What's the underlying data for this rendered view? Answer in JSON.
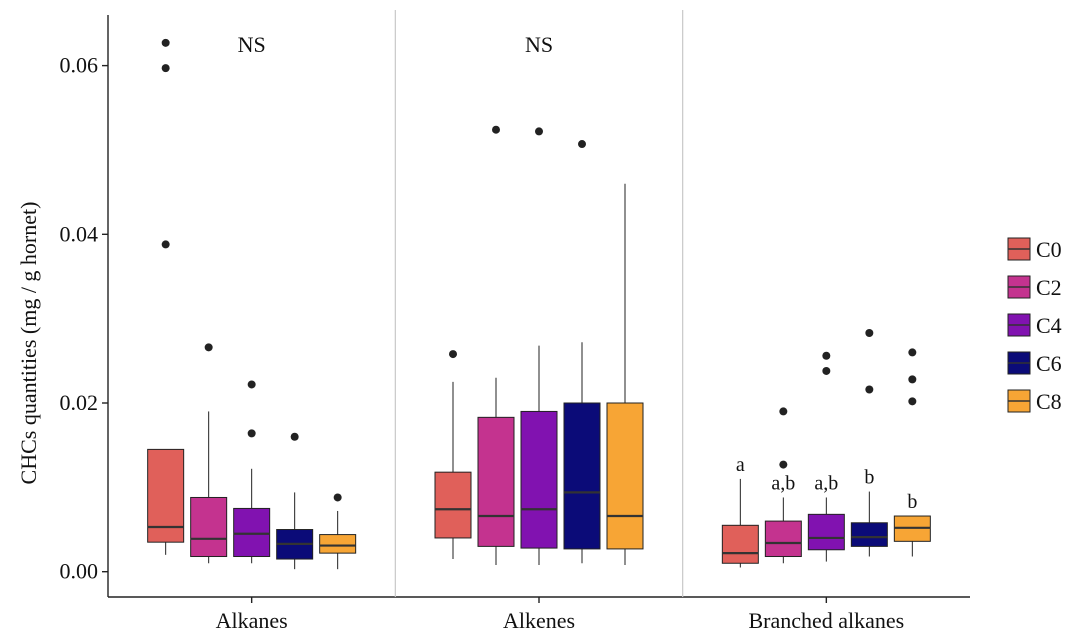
{
  "chart_data": {
    "type": "box",
    "ylabel": "CHCs quantities (mg / g hornet)",
    "xlabel": "",
    "ylim": [
      -0.003,
      0.066
    ],
    "yticks": [
      0.0,
      0.02,
      0.04,
      0.06
    ],
    "ytick_labels": [
      "0.00",
      "0.02",
      "0.04",
      "0.06"
    ],
    "grid": false,
    "legend_position": "right",
    "series": [
      {
        "name": "C0",
        "color": "#e0605a"
      },
      {
        "name": "C2",
        "color": "#c4338f"
      },
      {
        "name": "C4",
        "color": "#8112b0"
      },
      {
        "name": "C6",
        "color": "#0b0b78"
      },
      {
        "name": "C8",
        "color": "#f7a535"
      }
    ],
    "groups": [
      {
        "label": "Alkanes",
        "annotation": "NS",
        "boxes": [
          {
            "series": "C0",
            "min": 0.002,
            "q1": 0.0035,
            "median": 0.0053,
            "q3": 0.0145,
            "max": 0.0145,
            "outliers": [
              0.0627,
              0.0597,
              0.0388
            ],
            "letter": ""
          },
          {
            "series": "C2",
            "min": 0.001,
            "q1": 0.0018,
            "median": 0.0039,
            "q3": 0.0088,
            "max": 0.019,
            "outliers": [
              0.0266
            ],
            "letter": ""
          },
          {
            "series": "C4",
            "min": 0.001,
            "q1": 0.0018,
            "median": 0.0045,
            "q3": 0.0075,
            "max": 0.0122,
            "outliers": [
              0.0222,
              0.0164
            ],
            "letter": ""
          },
          {
            "series": "C6",
            "min": 0.0003,
            "q1": 0.0015,
            "median": 0.0033,
            "q3": 0.005,
            "max": 0.0094,
            "outliers": [
              0.016
            ],
            "letter": ""
          },
          {
            "series": "C8",
            "min": 0.0003,
            "q1": 0.0022,
            "median": 0.0031,
            "q3": 0.0044,
            "max": 0.0072,
            "outliers": [
              0.0088
            ],
            "letter": ""
          }
        ]
      },
      {
        "label": "Alkenes",
        "annotation": "NS",
        "boxes": [
          {
            "series": "C0",
            "min": 0.0015,
            "q1": 0.004,
            "median": 0.0074,
            "q3": 0.0118,
            "max": 0.0225,
            "outliers": [
              0.0258
            ],
            "letter": ""
          },
          {
            "series": "C2",
            "min": 0.0008,
            "q1": 0.003,
            "median": 0.0066,
            "q3": 0.0183,
            "max": 0.023,
            "outliers": [
              0.0524
            ],
            "letter": ""
          },
          {
            "series": "C4",
            "min": 0.0008,
            "q1": 0.0028,
            "median": 0.0074,
            "q3": 0.019,
            "max": 0.0268,
            "outliers": [
              0.0522
            ],
            "letter": ""
          },
          {
            "series": "C6",
            "min": 0.001,
            "q1": 0.0027,
            "median": 0.0094,
            "q3": 0.02,
            "max": 0.0272,
            "outliers": [
              0.0507
            ],
            "letter": ""
          },
          {
            "series": "C8",
            "min": 0.0008,
            "q1": 0.0027,
            "median": 0.0066,
            "q3": 0.02,
            "max": 0.046,
            "outliers": [],
            "letter": ""
          }
        ]
      },
      {
        "label": "Branched alkanes",
        "annotation": "",
        "boxes": [
          {
            "series": "C0",
            "min": 0.0005,
            "q1": 0.001,
            "median": 0.0022,
            "q3": 0.0055,
            "max": 0.011,
            "outliers": [],
            "letter": "a"
          },
          {
            "series": "C2",
            "min": 0.001,
            "q1": 0.0018,
            "median": 0.0034,
            "q3": 0.006,
            "max": 0.0088,
            "outliers": [
              0.019,
              0.0127
            ],
            "letter": "a,b"
          },
          {
            "series": "C4",
            "min": 0.0012,
            "q1": 0.0026,
            "median": 0.004,
            "q3": 0.0068,
            "max": 0.0088,
            "outliers": [
              0.0256,
              0.0238
            ],
            "letter": "a,b"
          },
          {
            "series": "C6",
            "min": 0.0018,
            "q1": 0.003,
            "median": 0.0041,
            "q3": 0.0058,
            "max": 0.0095,
            "outliers": [
              0.0283,
              0.0216
            ],
            "letter": "b"
          },
          {
            "series": "C8",
            "min": 0.0018,
            "q1": 0.0036,
            "median": 0.0052,
            "q3": 0.0066,
            "max": 0.0066,
            "outliers": [
              0.026,
              0.0228,
              0.0202
            ],
            "letter": "b"
          }
        ]
      }
    ]
  }
}
